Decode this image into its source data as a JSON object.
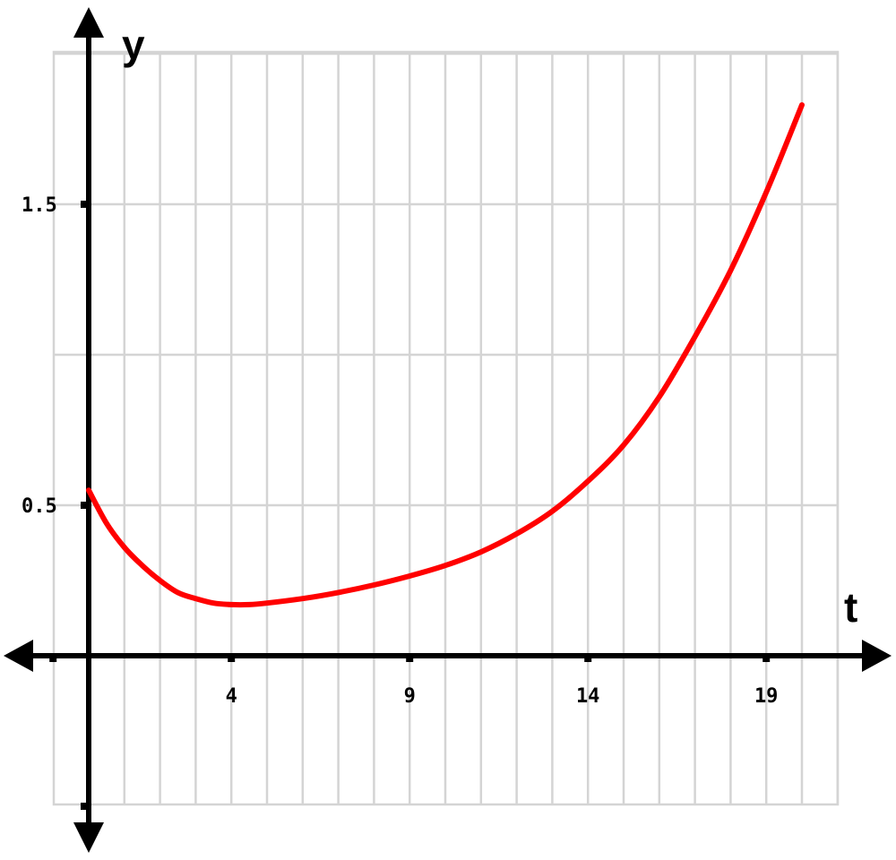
{
  "chart_data": {
    "type": "line",
    "xlabel": "t",
    "ylabel": "y",
    "xlim": [
      -1,
      22
    ],
    "ylim": [
      -0.5,
      2.0
    ],
    "grid": true,
    "x_ticks": [
      {
        "value": 4,
        "label": "4"
      },
      {
        "value": 9,
        "label": "9"
      },
      {
        "value": 14,
        "label": "14"
      },
      {
        "value": 19,
        "label": "19"
      }
    ],
    "y_ticks": [
      {
        "value": 0.5,
        "label": "0.5"
      },
      {
        "value": 1.5,
        "label": "1.5"
      }
    ],
    "series": [
      {
        "color": "#ff0000",
        "x": [
          0,
          0.5,
          1,
          1.5,
          2,
          2.5,
          3,
          3.5,
          4,
          4.5,
          5,
          6,
          7,
          8,
          9,
          10,
          11,
          12,
          13,
          14,
          15,
          16,
          17,
          18,
          19,
          20
        ],
        "y": [
          0.55,
          0.44,
          0.36,
          0.3,
          0.25,
          0.21,
          0.19,
          0.175,
          0.17,
          0.17,
          0.175,
          0.19,
          0.21,
          0.235,
          0.265,
          0.3,
          0.345,
          0.405,
          0.48,
          0.58,
          0.7,
          0.86,
          1.06,
          1.28,
          1.54,
          1.83
        ]
      }
    ]
  }
}
